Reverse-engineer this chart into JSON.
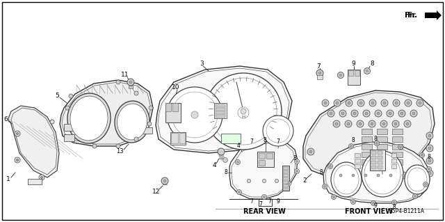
{
  "background_color": "#ffffff",
  "figwidth": 6.4,
  "figheight": 3.19,
  "dpi": 100,
  "part_number": "S5P4-B1211A",
  "rear_view_label": "REAR VIEW",
  "front_view_label": "FRONT VIEW"
}
